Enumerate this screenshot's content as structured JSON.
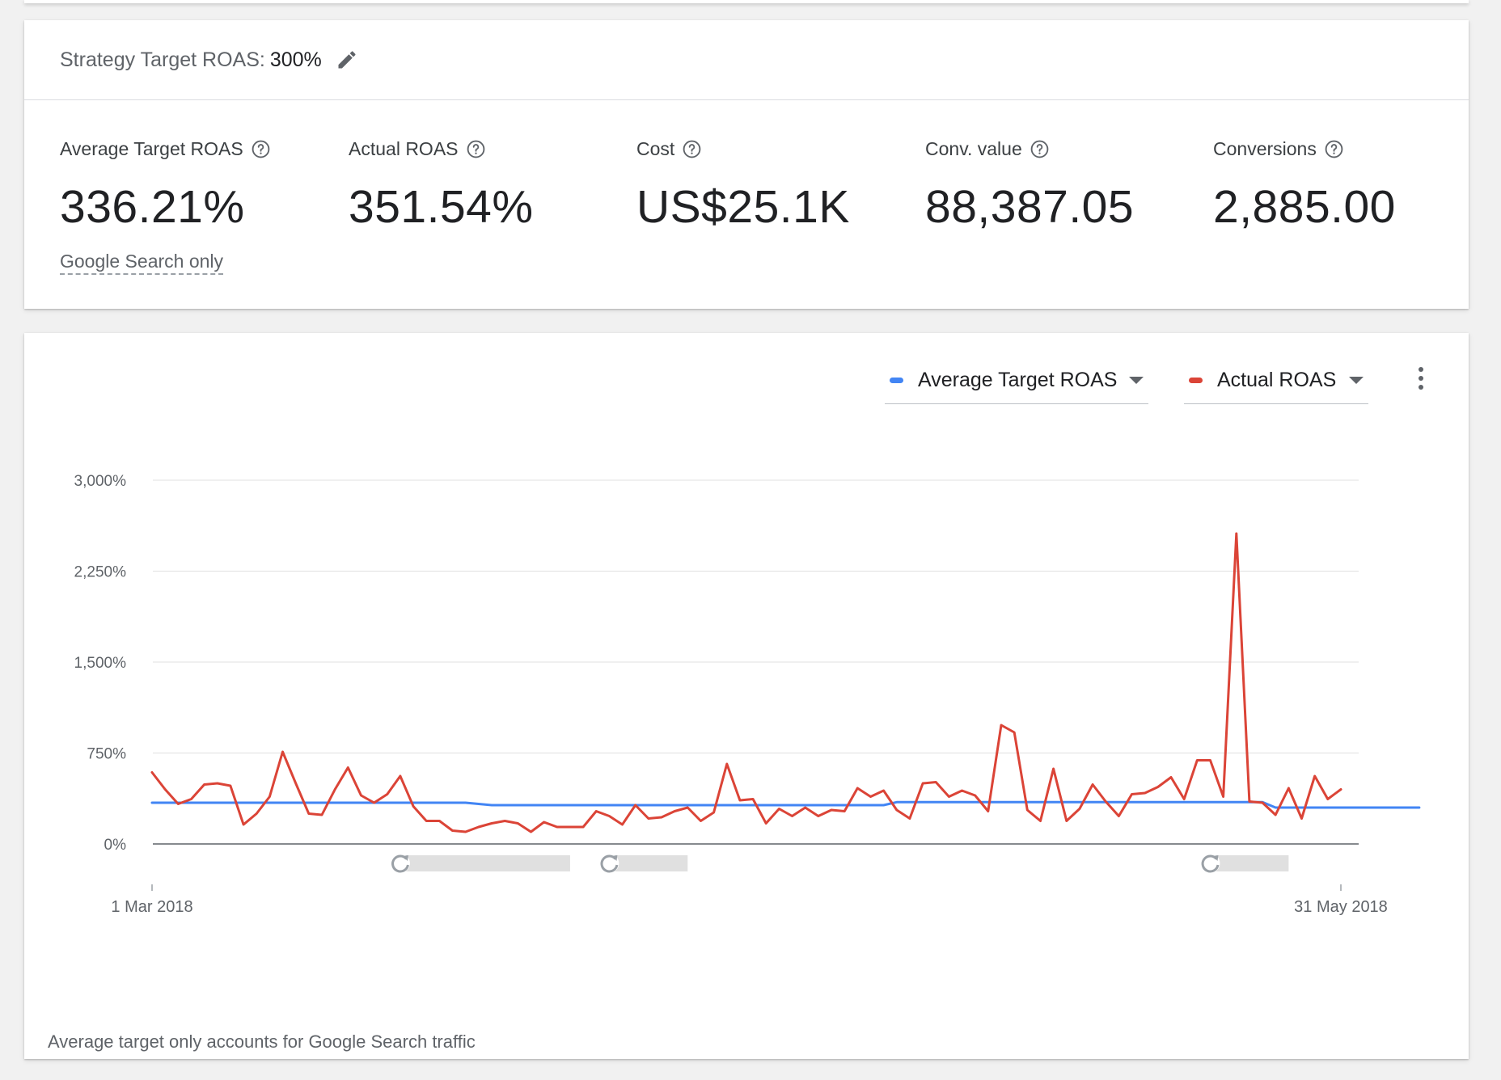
{
  "strategy": {
    "label": "Strategy Target ROAS:",
    "value": "300%",
    "edit_icon": "pencil-icon"
  },
  "metrics": [
    {
      "label": "Average Target ROAS",
      "value": "336.21%",
      "icon": "help-icon"
    },
    {
      "label": "Actual ROAS",
      "value": "351.54%",
      "icon": "help-icon"
    },
    {
      "label": "Cost",
      "value": "US$25.1K",
      "icon": "help-icon"
    },
    {
      "label": "Conv. value",
      "value": "88,387.05",
      "icon": "help-icon"
    },
    {
      "label": "Conversions",
      "value": "2,885.00",
      "icon": "help-icon"
    }
  ],
  "scope_link": "Google Search only",
  "legend": {
    "series1_label": "Average Target ROAS",
    "series1_color": "#4285f4",
    "series2_label": "Actual ROAS",
    "series2_color": "#db4437"
  },
  "footnote": "Average target only accounts for Google Search traffic",
  "chart_data": {
    "type": "line",
    "x_start": "1 Mar 2018",
    "x_end": "31 May 2018",
    "xtick_labels": [
      "1 Mar 2018",
      "31 May 2018"
    ],
    "ytick_labels": [
      "0%",
      "750%",
      "1,500%",
      "2,250%",
      "3,000%"
    ],
    "yticks": [
      0,
      750,
      1500,
      2250,
      3000
    ],
    "ylim": [
      0,
      3000
    ],
    "grid": true,
    "legend_position": "top-right",
    "strategy_change_markers": [
      {
        "start_day": 19,
        "end_day": 32
      },
      {
        "start_day": 35,
        "end_day": 41
      },
      {
        "start_day": 81,
        "end_day": 87
      }
    ],
    "series": [
      {
        "name": "Average Target ROAS",
        "color": "#4285f4",
        "values": [
          340,
          340,
          340,
          340,
          340,
          340,
          340,
          340,
          340,
          340,
          340,
          340,
          340,
          340,
          340,
          340,
          340,
          340,
          340,
          340,
          340,
          340,
          340,
          340,
          340,
          330,
          320,
          320,
          320,
          320,
          320,
          320,
          320,
          320,
          320,
          320,
          320,
          320,
          320,
          320,
          320,
          320,
          320,
          320,
          320,
          320,
          320,
          320,
          320,
          320,
          320,
          320,
          320,
          320,
          320,
          320,
          320,
          345,
          345,
          345,
          345,
          345,
          345,
          345,
          345,
          345,
          345,
          345,
          345,
          345,
          345,
          345,
          345,
          345,
          345,
          345,
          345,
          345,
          345,
          345,
          345,
          345,
          345,
          345,
          345,
          345,
          300,
          300,
          300,
          300,
          300,
          300,
          300,
          300,
          300,
          300,
          300,
          300
        ]
      },
      {
        "name": "Actual ROAS",
        "color": "#db4437",
        "values": [
          590,
          450,
          330,
          370,
          490,
          500,
          480,
          160,
          250,
          390,
          760,
          500,
          250,
          240,
          450,
          630,
          400,
          340,
          410,
          560,
          310,
          190,
          190,
          110,
          100,
          140,
          170,
          190,
          170,
          100,
          180,
          140,
          140,
          140,
          270,
          230,
          160,
          320,
          210,
          220,
          270,
          300,
          190,
          260,
          660,
          360,
          370,
          170,
          290,
          230,
          300,
          230,
          280,
          270,
          460,
          390,
          440,
          280,
          210,
          500,
          510,
          390,
          440,
          400,
          270,
          980,
          920,
          280,
          190,
          620,
          190,
          290,
          490,
          350,
          230,
          410,
          420,
          470,
          550,
          370,
          690,
          690,
          390,
          2560,
          350,
          340,
          240,
          460,
          210,
          560,
          370,
          450
        ]
      }
    ]
  }
}
